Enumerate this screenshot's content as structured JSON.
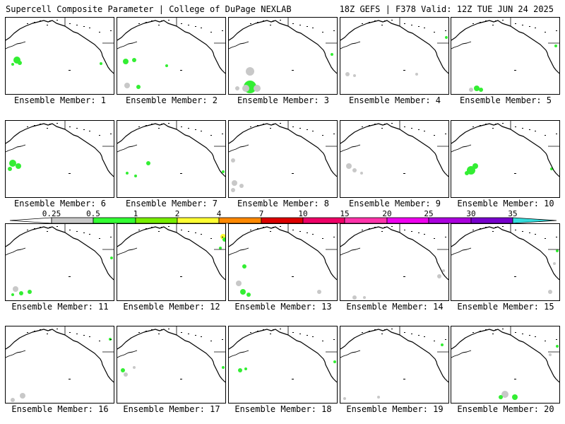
{
  "header": {
    "title": "Supercell Composite Parameter | College of DuPage NEXLAB",
    "run_info": "18Z GEFS | F378 Valid: 12Z TUE JUN 24 2025"
  },
  "colorbar": {
    "levels": [
      "0.25",
      "0.5",
      "1",
      "2",
      "4",
      "7",
      "10",
      "15",
      "20",
      "25",
      "30",
      "35"
    ],
    "colors": [
      "#c8c8c8",
      "#33ff33",
      "#77ee00",
      "#ffff33",
      "#ff8800",
      "#dd0000",
      "#ee0066",
      "#ff33aa",
      "#ee00ee",
      "#aa00dd",
      "#7700cc",
      "#9966dd",
      "#33dddd"
    ]
  },
  "members": [
    {
      "label": "Ensemble Member: 1"
    },
    {
      "label": "Ensemble Member: 2"
    },
    {
      "label": "Ensemble Member: 3"
    },
    {
      "label": "Ensemble Member: 4"
    },
    {
      "label": "Ensemble Member: 5"
    },
    {
      "label": "Ensemble Member: 6"
    },
    {
      "label": "Ensemble Member: 7"
    },
    {
      "label": "Ensemble Member: 8"
    },
    {
      "label": "Ensemble Member: 9"
    },
    {
      "label": "Ensemble Member: 10"
    },
    {
      "label": "Ensemble Member: 11"
    },
    {
      "label": "Ensemble Member: 12"
    },
    {
      "label": "Ensemble Member: 13"
    },
    {
      "label": "Ensemble Member: 14"
    },
    {
      "label": "Ensemble Member: 15"
    },
    {
      "label": "Ensemble Member: 16"
    },
    {
      "label": "Ensemble Member: 17"
    },
    {
      "label": "Ensemble Member: 18"
    },
    {
      "label": "Ensemble Member: 19"
    },
    {
      "label": "Ensemble Member: 20"
    }
  ]
}
